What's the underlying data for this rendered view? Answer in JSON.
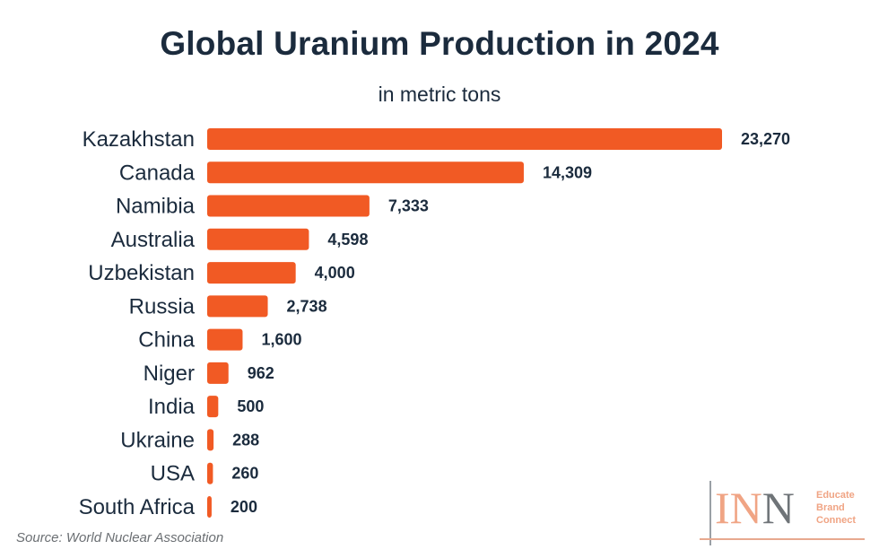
{
  "title": "Global Uranium Production in 2024",
  "subtitle": "in metric tons",
  "source": "Source: World Nuclear Association",
  "logo": {
    "mark_letters": [
      "I",
      "N",
      "N"
    ],
    "tagline": [
      "Educate",
      "Brand",
      "Connect"
    ]
  },
  "colors": {
    "bar": "#f15a24",
    "title": "#1b2b3d",
    "category_text": "#1b2b3d",
    "value_text": "#1b2b3d",
    "logo_accent": "#f0a484",
    "logo_gray": "#6f7478"
  },
  "chart_data": {
    "type": "bar",
    "orientation": "horizontal",
    "categories": [
      "Kazakhstan",
      "Canada",
      "Namibia",
      "Australia",
      "Uzbekistan",
      "Russia",
      "China",
      "Niger",
      "India",
      "Ukraine",
      "USA",
      "South Africa"
    ],
    "values": [
      23270,
      14309,
      7333,
      4598,
      4000,
      2738,
      1600,
      962,
      500,
      288,
      260,
      200
    ],
    "value_labels": [
      "23,270",
      "14,309",
      "7,333",
      "4,598",
      "4,000",
      "2,738",
      "1,600",
      "962",
      "500",
      "288",
      "260",
      "200"
    ],
    "unit": "metric tons",
    "xlim": [
      0,
      23270
    ],
    "grid": false,
    "legend": "none"
  }
}
